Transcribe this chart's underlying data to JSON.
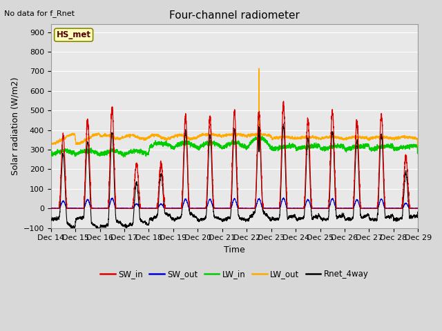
{
  "title": "Four-channel radiometer",
  "top_left_text": "No data for f_Rnet",
  "station_label": "HS_met",
  "ylabel": "Solar radiation (W/m2)",
  "xlabel": "Time",
  "ylim": [
    -100,
    940
  ],
  "yticks": [
    -100,
    0,
    100,
    200,
    300,
    400,
    500,
    600,
    700,
    800,
    900
  ],
  "num_days": 15,
  "xtick_labels": [
    "Dec 14",
    "Dec 15",
    "Dec 16",
    "Dec 17",
    "Dec 18",
    "Dec 19",
    "Dec 20",
    "Dec 21",
    "Dec 22",
    "Dec 23",
    "Dec 24",
    "Dec 25",
    "Dec 26",
    "Dec 27",
    "Dec 28",
    "Dec 29"
  ],
  "legend_items": [
    {
      "label": "SW_in",
      "color": "#dd0000"
    },
    {
      "label": "SW_out",
      "color": "#0000dd"
    },
    {
      "label": "LW_in",
      "color": "#00cc00"
    },
    {
      "label": "LW_out",
      "color": "#ffaa00"
    },
    {
      "label": "Rnet_4way",
      "color": "#000000"
    }
  ],
  "bg_color": "#e8e8e8",
  "grid_color": "#ffffff",
  "title_fontsize": 11,
  "label_fontsize": 9,
  "tick_fontsize": 8,
  "figwidth": 6.4,
  "figheight": 4.8,
  "dpi": 100
}
